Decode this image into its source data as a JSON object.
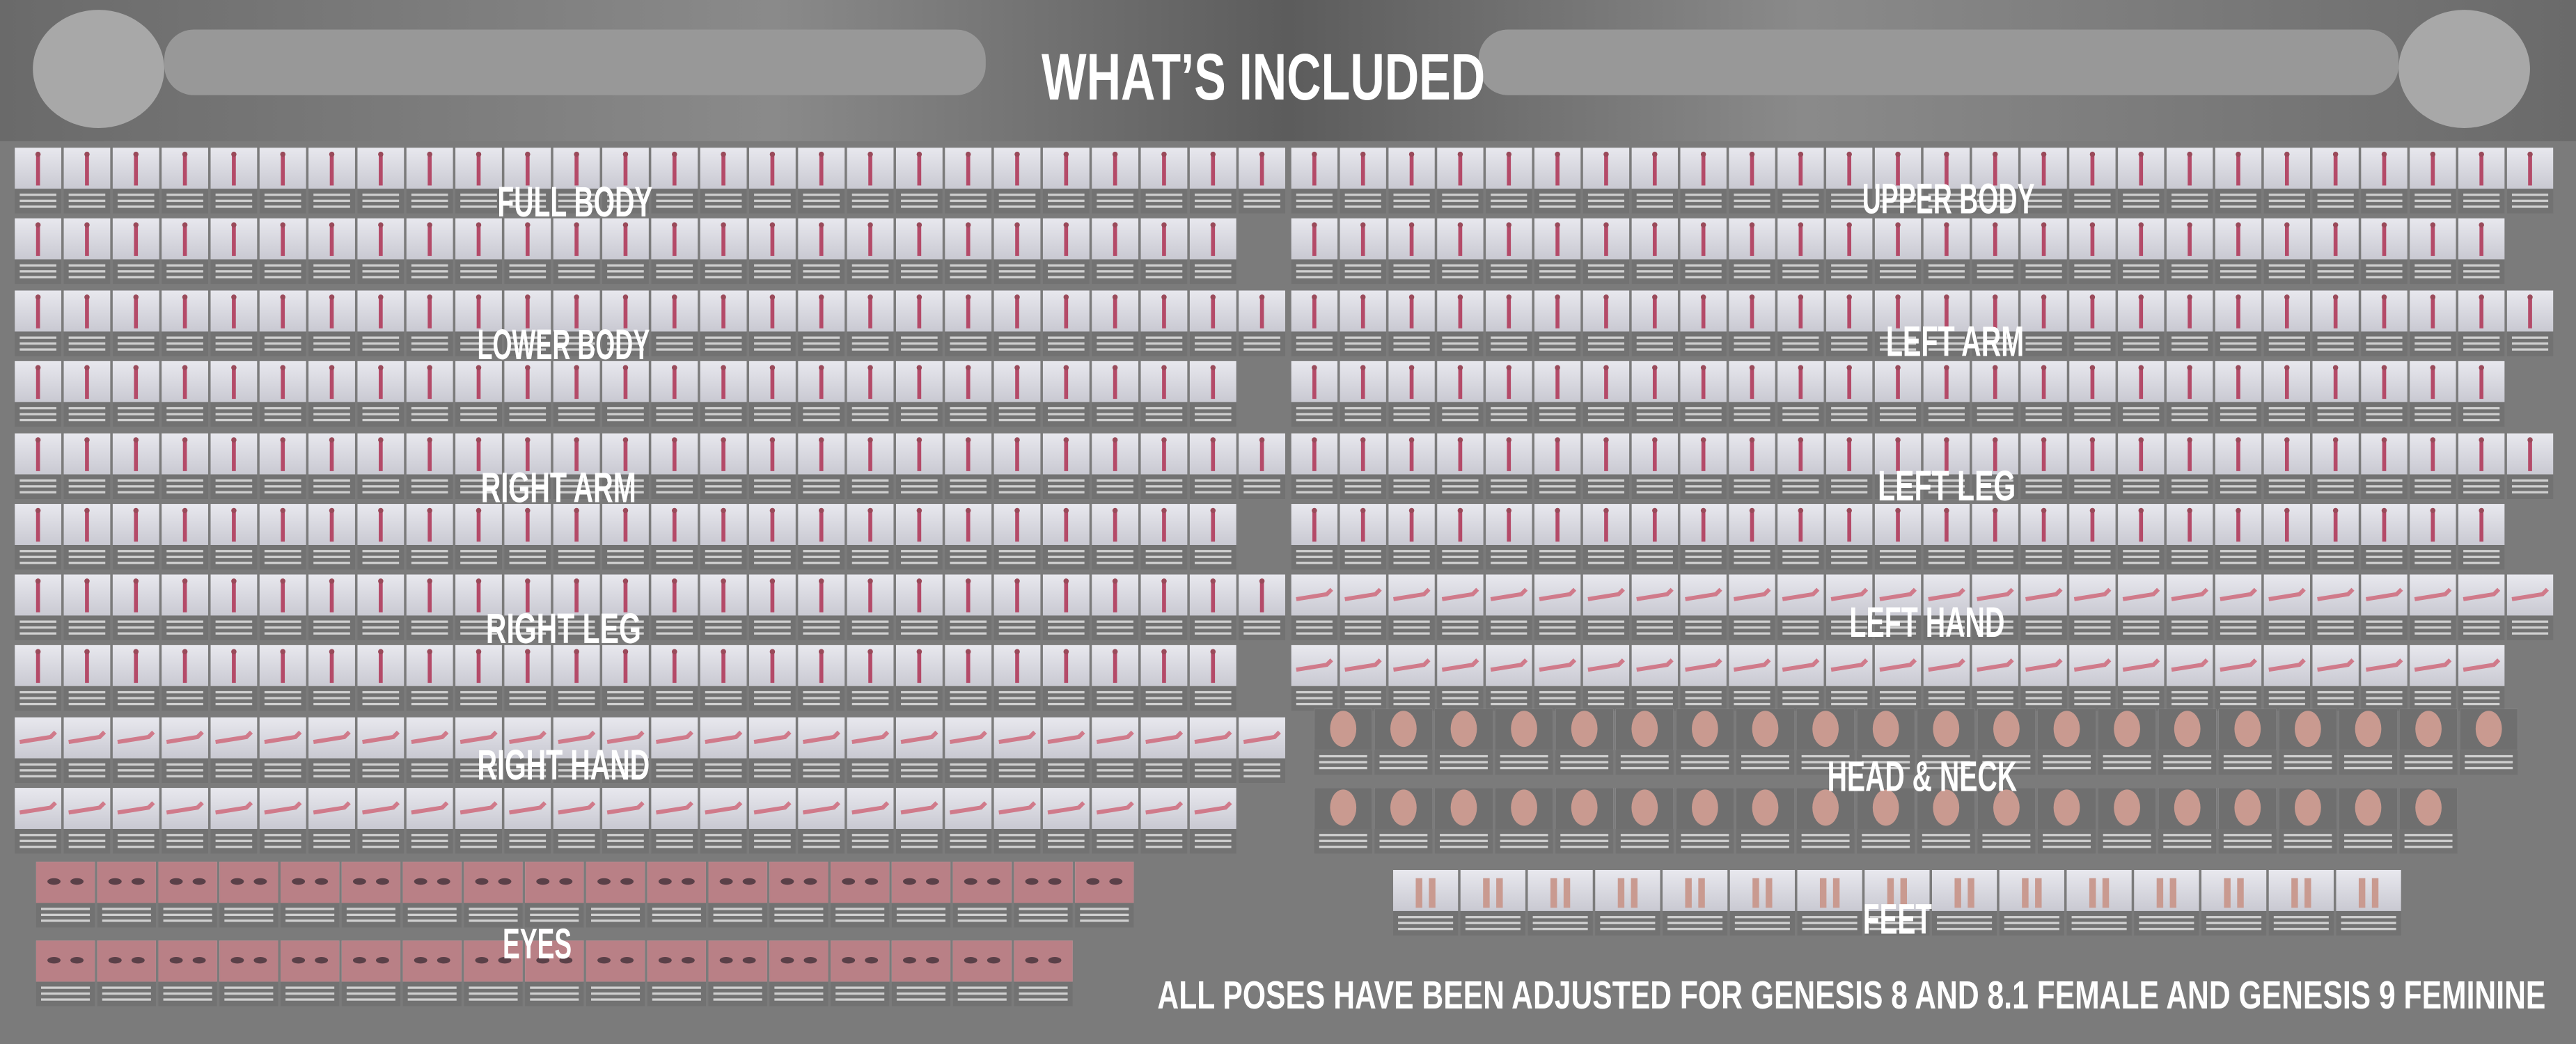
{
  "header": {
    "title": "WHAT’S INCLUDED"
  },
  "sections": [
    {
      "label": "FULL BODY"
    },
    {
      "label": "LOWER BODY"
    },
    {
      "label": "RIGHT ARM"
    },
    {
      "label": "RIGHT LEG"
    },
    {
      "label": "RIGHT HAND"
    },
    {
      "label": "EYES"
    },
    {
      "label": "UPPER BODY"
    },
    {
      "label": "LEFT ARM"
    },
    {
      "label": "LEFT LEG"
    },
    {
      "label": "LEFT HAND"
    },
    {
      "label": "HEAD & NECK"
    },
    {
      "label": "FEET"
    }
  ],
  "footer": "ALL POSES HAVE BEEN ADJUSTED FOR GENESIS 8 AND 8.1 FEMALE AND GENESIS 9 FEMININE"
}
